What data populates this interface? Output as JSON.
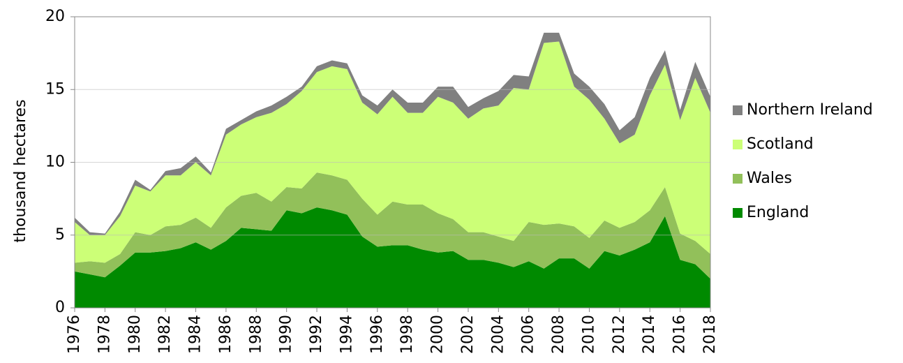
{
  "chart_data": {
    "type": "stacked_area",
    "y_label": "thousand hectares",
    "x": [
      1976,
      1977,
      1978,
      1979,
      1980,
      1981,
      1982,
      1983,
      1984,
      1985,
      1986,
      1987,
      1988,
      1989,
      1990,
      1991,
      1992,
      1993,
      1994,
      1995,
      1996,
      1997,
      1998,
      1999,
      2000,
      2001,
      2002,
      2003,
      2004,
      2005,
      2006,
      2007,
      2008,
      2009,
      2010,
      2011,
      2012,
      2013,
      2014,
      2015,
      2016,
      2017,
      2018
    ],
    "xlim": [
      1976,
      2018
    ],
    "xticks": [
      1976,
      1978,
      1980,
      1982,
      1984,
      1986,
      1988,
      1990,
      1992,
      1994,
      1996,
      1998,
      2000,
      2002,
      2004,
      2006,
      2008,
      2010,
      2012,
      2014,
      2016,
      2018
    ],
    "ylim": [
      0,
      20
    ],
    "yticks": [
      0,
      5,
      10,
      15,
      20
    ],
    "grid": true,
    "legend": "right",
    "series": [
      {
        "name": "England",
        "color": "#008a00",
        "values": [
          2.5,
          2.3,
          2.1,
          2.9,
          3.8,
          3.8,
          3.9,
          4.1,
          4.5,
          4.0,
          4.6,
          5.5,
          5.4,
          5.3,
          6.7,
          6.5,
          6.9,
          6.7,
          6.4,
          4.9,
          4.2,
          4.3,
          4.3,
          4.0,
          3.8,
          3.9,
          3.3,
          3.3,
          3.1,
          2.8,
          3.2,
          2.7,
          3.4,
          3.4,
          2.7,
          3.9,
          3.6,
          4.0,
          4.5,
          6.3,
          3.3,
          3.0,
          2.0
        ]
      },
      {
        "name": "Wales",
        "color": "#92c05a",
        "values": [
          0.6,
          0.9,
          1.0,
          0.8,
          1.4,
          1.2,
          1.7,
          1.6,
          1.7,
          1.5,
          2.3,
          2.2,
          2.5,
          2.0,
          1.6,
          1.7,
          2.4,
          2.4,
          2.4,
          2.6,
          2.2,
          3.0,
          2.8,
          3.1,
          2.7,
          2.2,
          1.9,
          1.9,
          1.8,
          1.8,
          2.7,
          3.0,
          2.4,
          2.2,
          2.1,
          2.1,
          1.9,
          1.9,
          2.2,
          2.0,
          1.8,
          1.6,
          1.7
        ]
      },
      {
        "name": "Scotland",
        "color": "#ccff77",
        "values": [
          2.8,
          1.8,
          1.9,
          2.6,
          3.2,
          3.0,
          3.5,
          3.4,
          3.8,
          3.6,
          5.0,
          4.9,
          5.2,
          6.1,
          5.7,
          6.7,
          6.9,
          7.5,
          7.6,
          6.6,
          6.9,
          7.2,
          6.3,
          6.3,
          8.0,
          8.0,
          7.8,
          8.5,
          9.0,
          10.5,
          9.1,
          12.5,
          12.5,
          9.6,
          9.5,
          7.0,
          5.8,
          6.0,
          7.9,
          8.4,
          7.8,
          11.2,
          9.7
        ]
      },
      {
        "name": "Northern Ireland",
        "color": "#808080",
        "values": [
          0.3,
          0.2,
          0.1,
          0.3,
          0.4,
          0.1,
          0.3,
          0.5,
          0.4,
          0.2,
          0.4,
          0.3,
          0.4,
          0.5,
          0.5,
          0.3,
          0.4,
          0.4,
          0.4,
          0.5,
          0.6,
          0.5,
          0.7,
          0.7,
          0.7,
          1.1,
          0.8,
          0.7,
          1.0,
          0.9,
          0.9,
          0.7,
          0.6,
          0.9,
          0.9,
          1.0,
          0.9,
          1.2,
          1.2,
          1.0,
          0.7,
          1.1,
          1.1
        ]
      }
    ]
  }
}
